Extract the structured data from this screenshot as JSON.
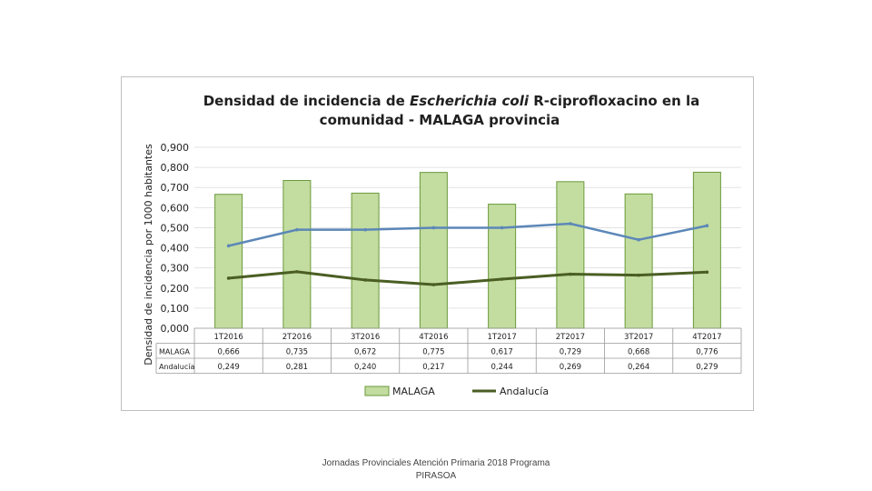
{
  "chart_data": {
    "type": "bar",
    "title_part1": "Densidad de incidencia de ",
    "title_italic": "Escherichia coli",
    "title_part2": " R-ciprofloxacino en la",
    "title_line2": "comunidad - MALAGA provincia",
    "ylabel": "Densidad de incidencia por 1000 habitantes",
    "ylim": [
      0,
      0.9
    ],
    "yticks": [
      "0,000",
      "0,100",
      "0,200",
      "0,300",
      "0,400",
      "0,500",
      "0,600",
      "0,700",
      "0,800",
      "0,900"
    ],
    "grid": true,
    "legend_position": "bottom",
    "categories": [
      "1T2016",
      "2T2016",
      "3T2016",
      "4T2016",
      "1T2017",
      "2T2017",
      "3T2017",
      "4T2017"
    ],
    "series": [
      {
        "name": "MALAGA",
        "type": "bar",
        "values": [
          0.666,
          0.735,
          0.672,
          0.775,
          0.617,
          0.729,
          0.668,
          0.776
        ],
        "labels": [
          "0,666",
          "0,735",
          "0,672",
          "0,775",
          "0,617",
          "0,729",
          "0,668",
          "0,776"
        ],
        "color": "#c3dca0",
        "border": "#6a9a3a"
      },
      {
        "name": "Andalucía",
        "type": "line",
        "values": [
          0.249,
          0.281,
          0.24,
          0.217,
          0.244,
          0.269,
          0.264,
          0.279
        ],
        "labels": [
          "0,249",
          "0,281",
          "0,240",
          "0,217",
          "0,244",
          "0,269",
          "0,264",
          "0,279"
        ],
        "color": "#4a5e23"
      },
      {
        "type": "line",
        "values": [
          0.41,
          0.49,
          0.49,
          0.5,
          0.5,
          0.52,
          0.44,
          0.51
        ],
        "color": "#5b87b8"
      }
    ]
  },
  "footer": {
    "line1": "Jornadas Provinciales Atención Primaria 2018 Programa",
    "line2": "PIRASOA"
  }
}
